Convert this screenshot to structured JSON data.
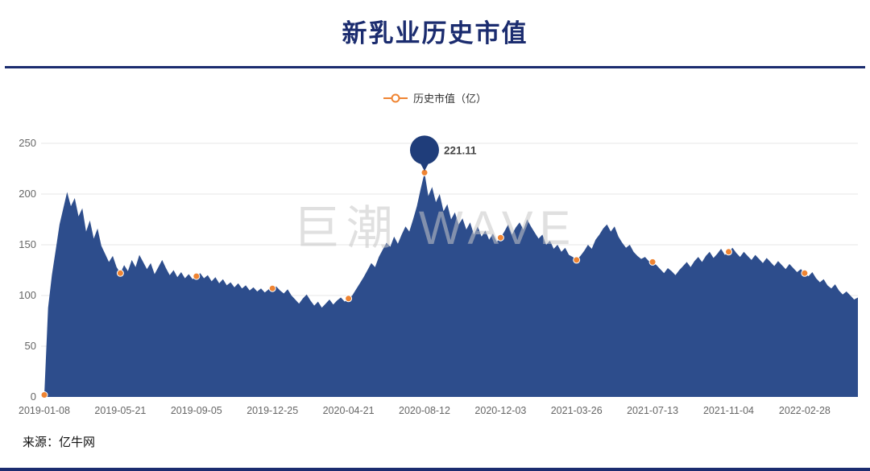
{
  "title": "新乳业历史市值",
  "legend": {
    "label": "历史市值（亿）"
  },
  "watermark": "巨潮 WAVE",
  "source": "来源：亿牛网",
  "colors": {
    "title": "#1b2c6f",
    "rule": "#1b2c6f",
    "area": "#2d4d8c",
    "marker": "#ef8432",
    "balloon": "#1f3d7a",
    "axis_text": "#666666",
    "grid": "#e7e7e7",
    "watermark": "#c8c8c8",
    "annotation_text": "#444444"
  },
  "chart_data": {
    "type": "area",
    "title": "新乳业历史市值",
    "series_name": "历史市值（亿）",
    "ylabel": "",
    "xlabel": "",
    "ylim": [
      0,
      250
    ],
    "y_ticks": [
      0,
      50,
      100,
      150,
      200,
      250
    ],
    "grid": "horizontal",
    "legend_position": "top",
    "tick_every": 20,
    "x_tick_labels": [
      "2019-01-08",
      "2019-05-21",
      "2019-09-05",
      "2019-12-25",
      "2020-04-21",
      "2020-08-12",
      "2020-12-03",
      "2021-03-26",
      "2021-07-13",
      "2021-11-04",
      "2022-02-28"
    ],
    "peak": {
      "index": 100,
      "value": 221.11,
      "label": "221.11",
      "date": "2020-08-12"
    },
    "values": [
      2,
      88,
      120,
      145,
      170,
      186,
      202,
      188,
      196,
      178,
      186,
      163,
      174,
      156,
      166,
      149,
      141,
      133,
      139,
      128,
      122,
      130,
      124,
      135,
      128,
      140,
      133,
      126,
      132,
      121,
      128,
      135,
      127,
      120,
      125,
      118,
      123,
      117,
      121,
      116,
      119,
      122,
      117,
      120,
      114,
      118,
      112,
      116,
      110,
      113,
      108,
      112,
      107,
      110,
      105,
      108,
      104,
      107,
      103,
      106,
      107,
      109,
      105,
      102,
      106,
      100,
      96,
      92,
      97,
      101,
      95,
      90,
      94,
      88,
      92,
      96,
      91,
      95,
      98,
      94,
      97,
      100,
      106,
      112,
      118,
      125,
      132,
      128,
      138,
      145,
      152,
      148,
      158,
      151,
      160,
      168,
      163,
      175,
      188,
      205,
      221.11,
      198,
      207,
      192,
      200,
      183,
      190,
      175,
      182,
      170,
      176,
      165,
      172,
      160,
      168,
      158,
      164,
      155,
      161,
      153,
      157,
      163,
      170,
      160,
      167,
      172,
      165,
      175,
      168,
      162,
      156,
      160,
      150,
      154,
      146,
      150,
      143,
      147,
      140,
      138,
      135,
      139,
      144,
      150,
      146,
      155,
      160,
      166,
      170,
      163,
      168,
      158,
      152,
      147,
      150,
      143,
      139,
      136,
      138,
      134,
      133,
      130,
      126,
      122,
      127,
      124,
      120,
      125,
      129,
      133,
      128,
      134,
      138,
      133,
      139,
      143,
      137,
      141,
      146,
      140,
      143,
      147,
      142,
      138,
      143,
      139,
      135,
      140,
      136,
      132,
      137,
      133,
      129,
      134,
      130,
      126,
      131,
      127,
      123,
      126,
      122,
      119,
      123,
      117,
      113,
      116,
      110,
      107,
      111,
      105,
      101,
      104,
      100,
      96,
      98
    ]
  }
}
